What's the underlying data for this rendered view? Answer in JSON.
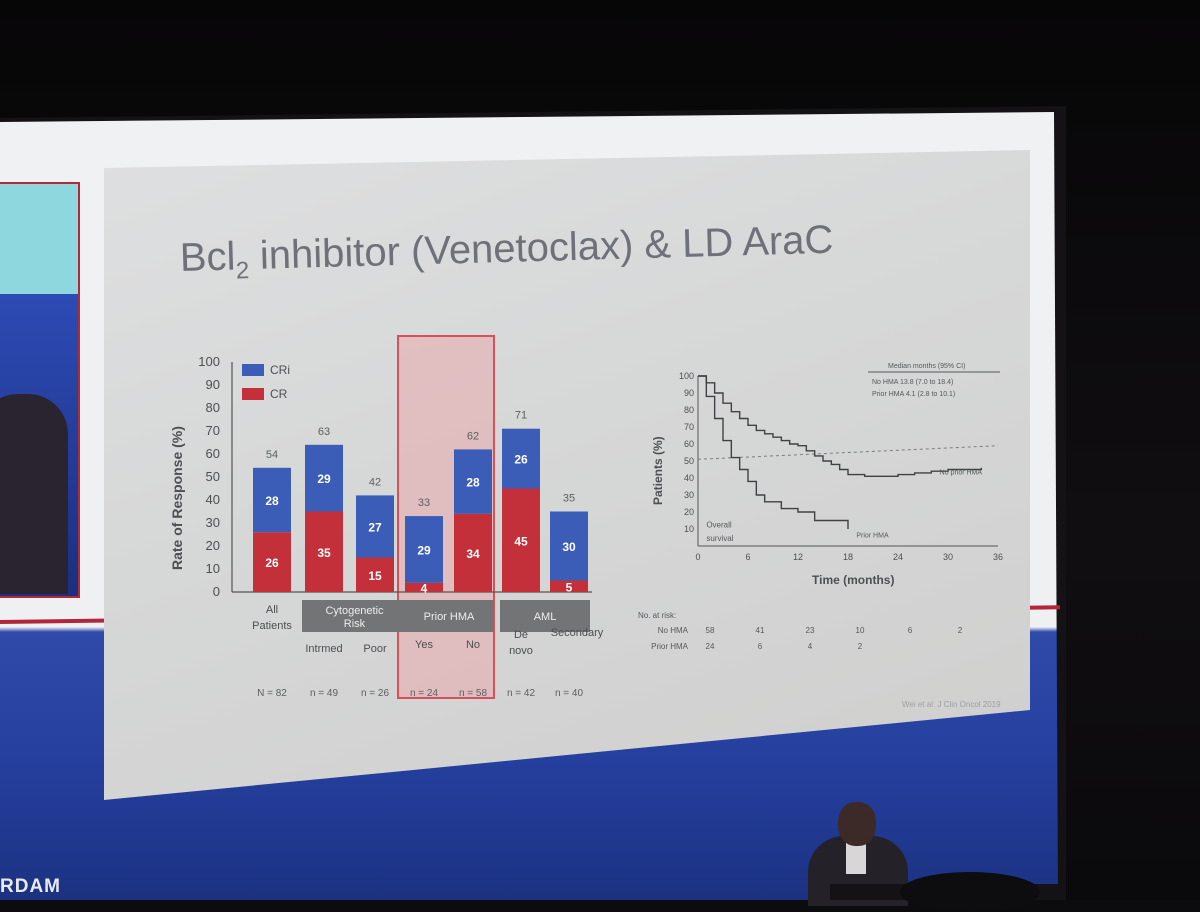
{
  "slide": {
    "title": "Bcl",
    "title_sub": "2",
    "title_rest": " inhibitor (Venetoclax) & LD AraC",
    "citation": "Wei et al. J Clin Oncol 2019"
  },
  "venue_logo": "RDAM",
  "chart_data": [
    {
      "type": "bar",
      "ylabel": "Rate of Response (%)",
      "ylim": [
        0,
        100
      ],
      "yticks": [
        0,
        10,
        20,
        30,
        40,
        50,
        60,
        70,
        80,
        90,
        100
      ],
      "legend": [
        "CRi",
        "CR"
      ],
      "legend_colors": {
        "CRi": "#3b5db8",
        "CR": "#c3303a"
      },
      "categories": [
        "All Patients",
        "Intrmed",
        "Poor",
        "Yes",
        "No",
        "De novo",
        "Secondary"
      ],
      "category_labels": [
        {
          "text": "All",
          "text2": "Patients"
        },
        {
          "text": "Intrmed",
          "text2": ""
        },
        {
          "text": "Poor",
          "text2": ""
        },
        {
          "text": "Yes",
          "text2": ""
        },
        {
          "text": "No",
          "text2": ""
        },
        {
          "text": "De",
          "text2": "novo"
        },
        {
          "text": "Secondary",
          "text2": ""
        }
      ],
      "series": [
        {
          "name": "CR",
          "values": [
            26,
            35,
            15,
            4,
            34,
            45,
            5
          ]
        },
        {
          "name": "CRi",
          "values": [
            28,
            29,
            27,
            29,
            28,
            26,
            30
          ]
        }
      ],
      "totals": [
        54,
        63,
        42,
        33,
        62,
        71,
        35
      ],
      "groups": [
        {
          "label": "Cytogenetic",
          "label2": "Risk"
        },
        {
          "label": "Prior HMA",
          "label2": ""
        },
        {
          "label": "AML",
          "label2": ""
        }
      ],
      "n_labels": [
        "N = 82",
        "n = 49",
        "n = 26",
        "n = 24",
        "n = 58",
        "n = 42",
        "n = 40"
      ],
      "highlight": "Prior HMA"
    },
    {
      "type": "line",
      "xlabel": "Time (months)",
      "ylabel": "Patients (%)",
      "xlim": [
        0,
        36
      ],
      "ylim": [
        0,
        100
      ],
      "xticks": [
        0,
        6,
        12,
        18,
        24,
        30,
        36
      ],
      "yticks": [
        10,
        20,
        30,
        40,
        50,
        60,
        70,
        80,
        90,
        100
      ],
      "legend_title": "Median months (95% CI)",
      "legend_rows": [
        "No HMA   13.8 (7.0 to 18.4)",
        "Prior HMA   4.1 (2.8 to 10.1)"
      ],
      "series": [
        {
          "name": "No prior HMA",
          "x": [
            0,
            1,
            2,
            3,
            4,
            5,
            6,
            7,
            8,
            9,
            10,
            11,
            12,
            13,
            14,
            15,
            16,
            17,
            18,
            20,
            22,
            24,
            26,
            28,
            30,
            32,
            34
          ],
          "y": [
            100,
            96,
            90,
            84,
            79,
            75,
            71,
            68,
            66,
            64,
            62,
            60,
            59,
            56,
            53,
            50,
            48,
            45,
            42,
            41,
            41,
            42,
            43,
            44,
            45,
            45,
            46
          ]
        },
        {
          "name": "Prior HMA",
          "x": [
            0,
            1,
            2,
            3,
            4,
            5,
            6,
            7,
            8,
            10,
            12,
            14,
            16,
            18
          ],
          "y": [
            100,
            88,
            75,
            62,
            52,
            45,
            38,
            30,
            26,
            22,
            20,
            15,
            15,
            10
          ]
        }
      ],
      "reference_line": 51,
      "annotations": [
        "No prior HMA",
        "Prior HMA",
        "Overall",
        "survival"
      ],
      "risk_table": {
        "header": "No. at risk:",
        "rows": [
          {
            "label": "No HMA",
            "values": [
              "58",
              "41",
              "23",
              "10",
              "6",
              "2"
            ]
          },
          {
            "label": "Prior HMA",
            "values": [
              "24",
              "6",
              "4",
              "2",
              "",
              ""
            ]
          }
        ]
      }
    }
  ]
}
